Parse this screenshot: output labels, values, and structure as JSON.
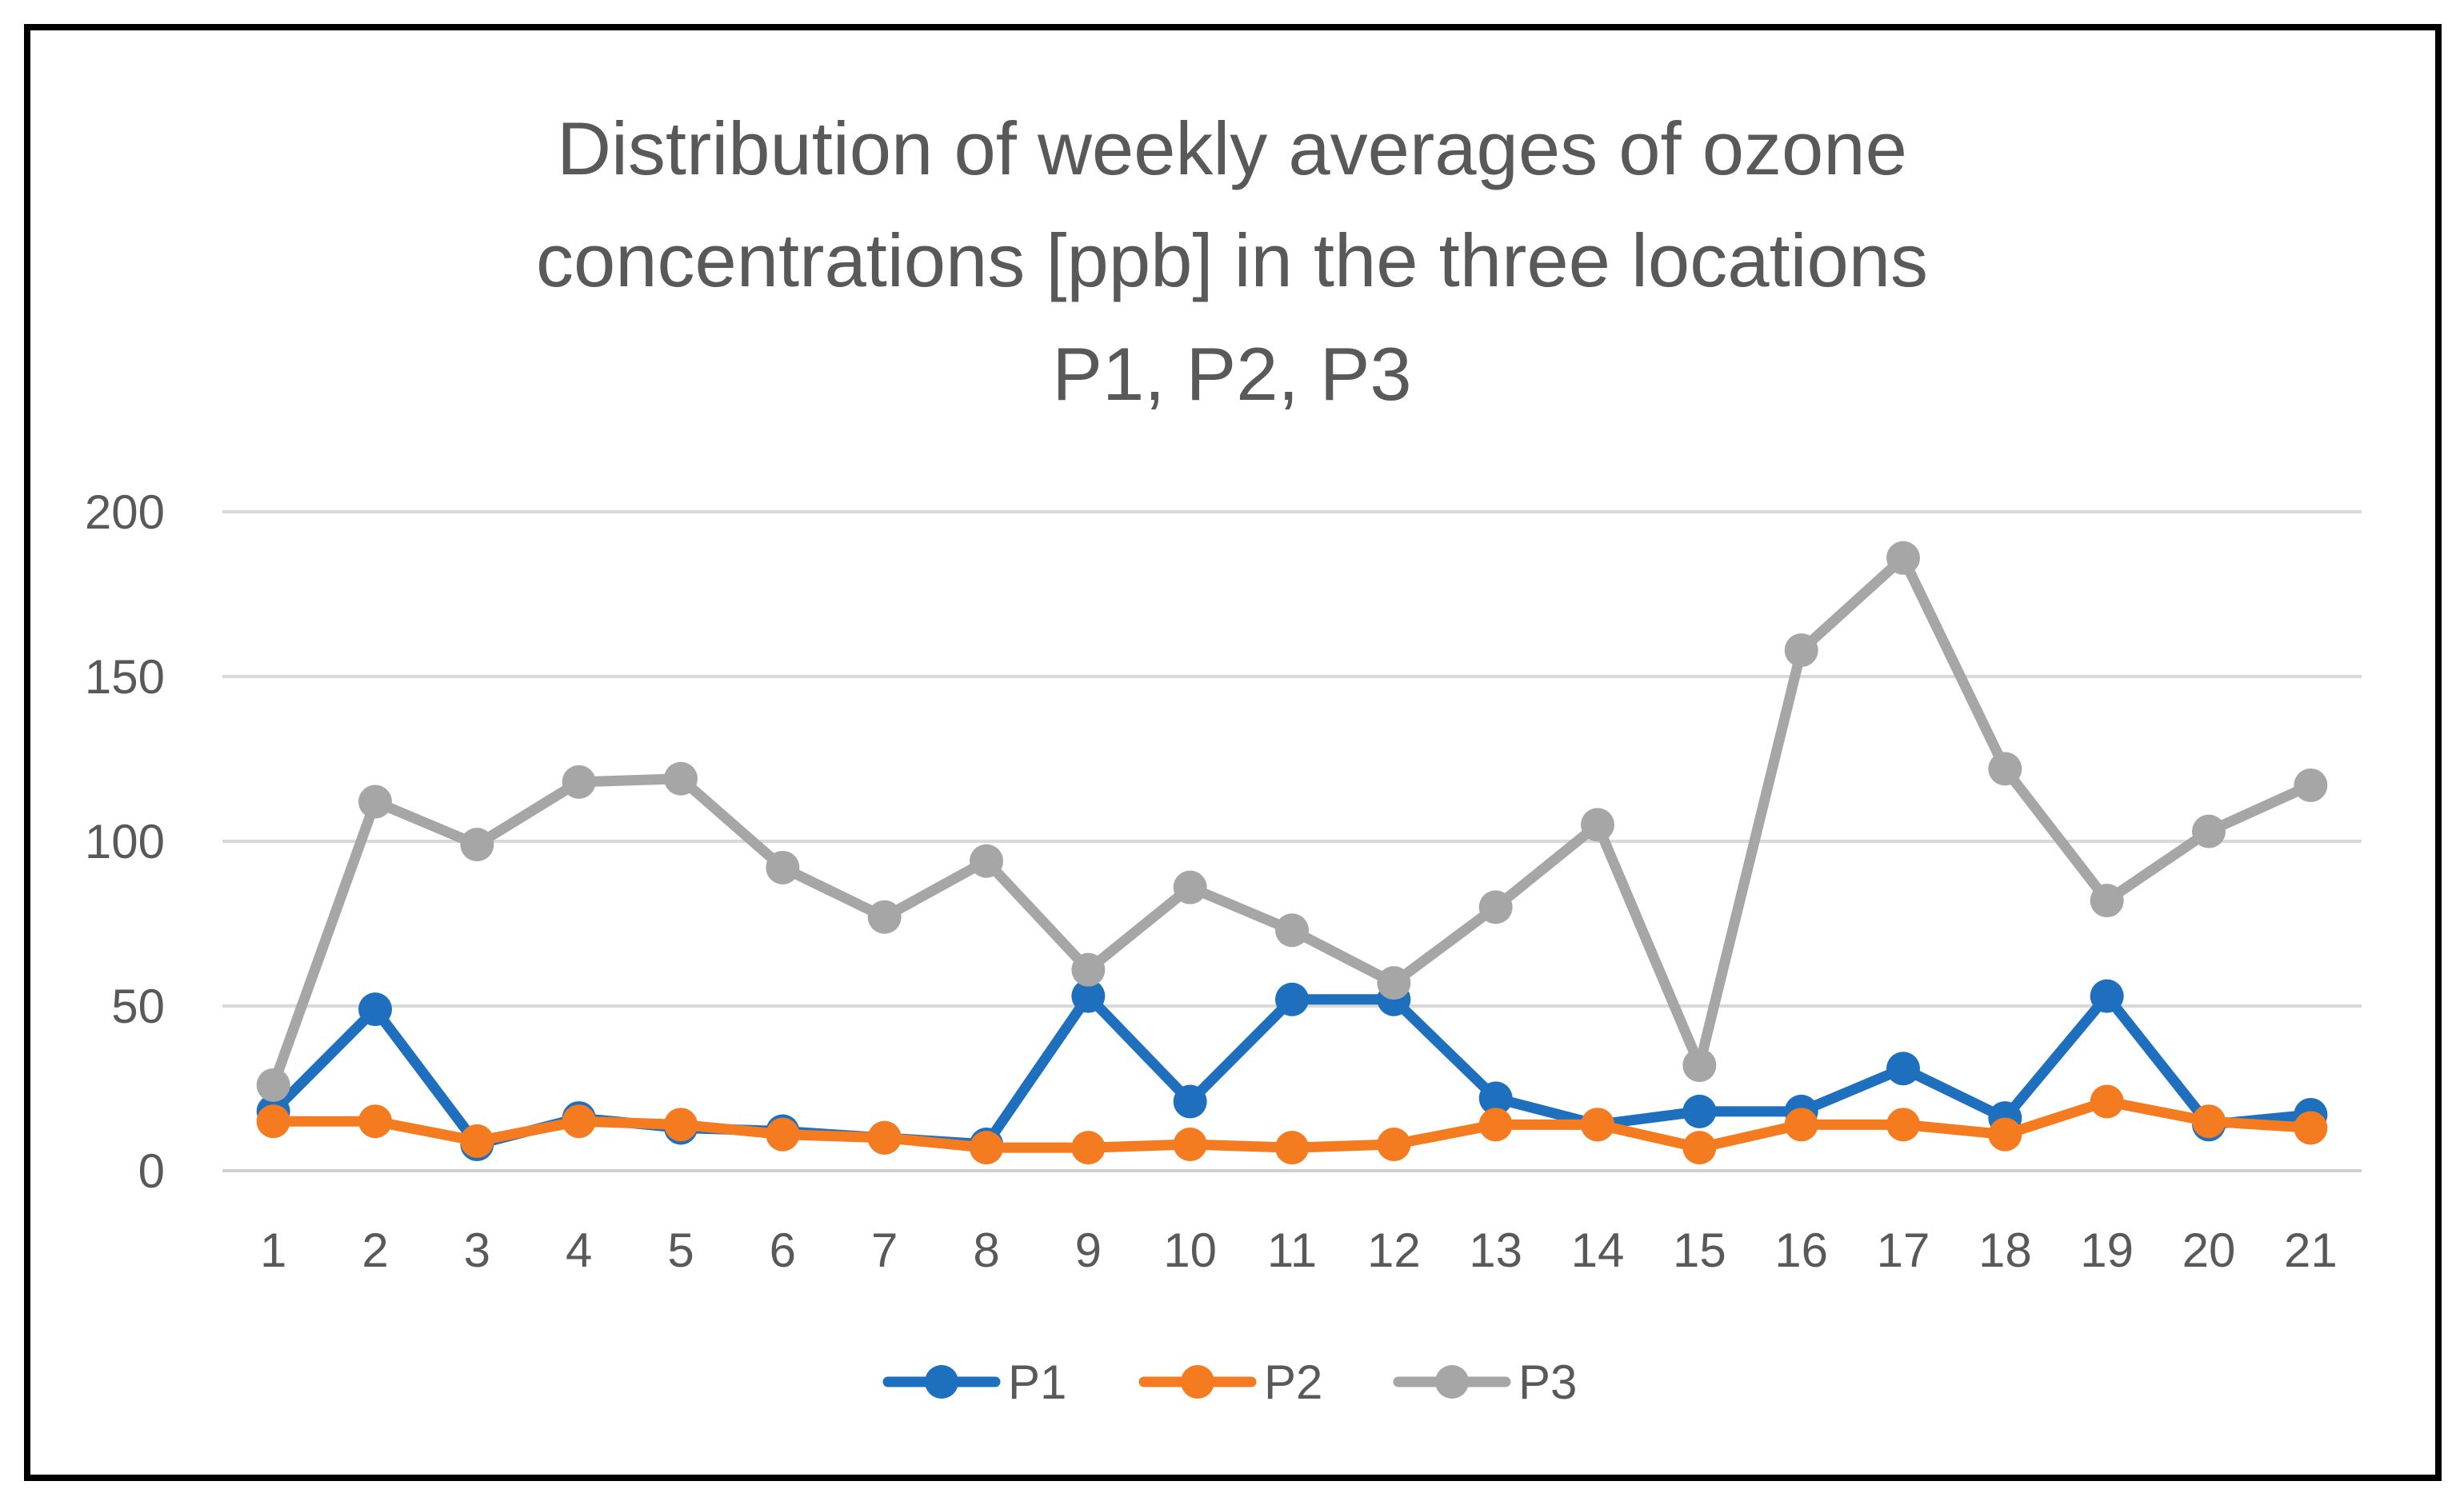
{
  "chart_data": {
    "type": "line",
    "title": [
      "Distribution of weekly averages of ozone",
      "concentrations [ppb] in the three locations",
      "P1, P2, P3"
    ],
    "xlabel": "",
    "ylabel": "",
    "categories": [
      "1",
      "2",
      "3",
      "4",
      "5",
      "6",
      "7",
      "8",
      "9",
      "10",
      "11",
      "12",
      "13",
      "14",
      "15",
      "16",
      "17",
      "18",
      "19",
      "20",
      "21"
    ],
    "ylim": [
      0,
      200
    ],
    "yticks": [
      "0",
      "50",
      "100",
      "150",
      "200"
    ],
    "grid": true,
    "legend_position": "bottom",
    "series": [
      {
        "name": "P1",
        "color": "#1F6FBF",
        "values": [
          18,
          49,
          8,
          16,
          13,
          12,
          10,
          8,
          53,
          21,
          52,
          52,
          22,
          14,
          18,
          18,
          31,
          16,
          53,
          14,
          17
        ]
      },
      {
        "name": "P2",
        "color": "#F47B20",
        "values": [
          15,
          15,
          9,
          15,
          14,
          11,
          10,
          7,
          7,
          8,
          7,
          8,
          14,
          14,
          7,
          14,
          14,
          11,
          21,
          15,
          13
        ]
      },
      {
        "name": "P3",
        "color": "#A6A6A6",
        "values": [
          26,
          112,
          99,
          118,
          119,
          92,
          77,
          94,
          61,
          86,
          73,
          57,
          80,
          105,
          32,
          158,
          186,
          122,
          82,
          103,
          117
        ]
      }
    ]
  }
}
